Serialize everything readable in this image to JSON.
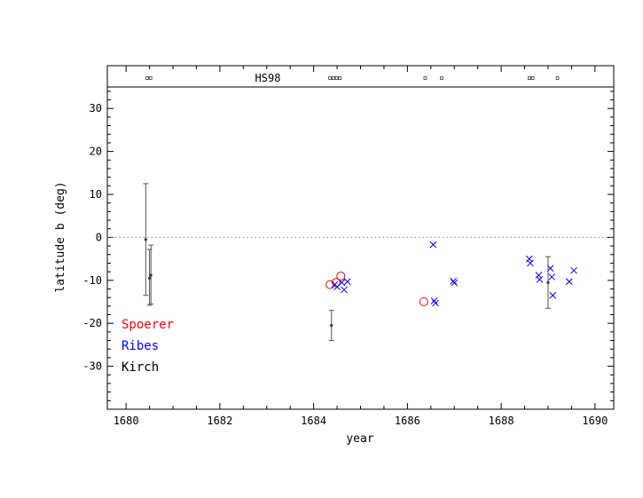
{
  "chart_data": {
    "type": "scatter",
    "xlabel": "year",
    "ylabel": "latitude b (deg)",
    "xlim": [
      1679.6,
      1690.4
    ],
    "ylim": [
      -40,
      35
    ],
    "x_ticks": [
      "1680",
      "1682",
      "1684",
      "1686",
      "1688",
      "1690"
    ],
    "y_ticks": [
      "30",
      "20",
      "10",
      "0",
      "-10",
      "-20",
      "-30"
    ],
    "band_label": "HS98",
    "band_markers_x": [
      1680.45,
      1680.52,
      1684.35,
      1684.42,
      1684.49,
      1684.56,
      1686.38,
      1686.73,
      1688.6,
      1688.67,
      1689.2
    ],
    "zero_line": true,
    "legend": [
      {
        "name": "Spoerer",
        "color": "#ff0000"
      },
      {
        "name": "Ribes",
        "color": "#0000ff"
      },
      {
        "name": "Kirch",
        "color": "#000000"
      }
    ],
    "series": [
      {
        "name": "Spoerer",
        "marker": "circle",
        "color": "#ff0000",
        "points": [
          {
            "x": 1684.35,
            "y": -11.0
          },
          {
            "x": 1684.48,
            "y": -10.5
          },
          {
            "x": 1684.58,
            "y": -9.0
          },
          {
            "x": 1686.35,
            "y": -15.0
          }
        ]
      },
      {
        "name": "Ribes",
        "marker": "cross",
        "color": "#0000ff",
        "points": [
          {
            "x": 1684.45,
            "y": -11.0
          },
          {
            "x": 1684.5,
            "y": -11.5
          },
          {
            "x": 1684.6,
            "y": -10.5
          },
          {
            "x": 1684.65,
            "y": -12.2
          },
          {
            "x": 1684.72,
            "y": -10.3
          },
          {
            "x": 1686.55,
            "y": -1.7
          },
          {
            "x": 1686.57,
            "y": -14.8
          },
          {
            "x": 1686.6,
            "y": -15.3
          },
          {
            "x": 1686.98,
            "y": -10.2
          },
          {
            "x": 1687.0,
            "y": -10.6
          },
          {
            "x": 1688.6,
            "y": -5.0
          },
          {
            "x": 1688.62,
            "y": -6.0
          },
          {
            "x": 1688.8,
            "y": -8.8
          },
          {
            "x": 1688.82,
            "y": -9.8
          },
          {
            "x": 1689.05,
            "y": -7.2
          },
          {
            "x": 1689.08,
            "y": -9.2
          },
          {
            "x": 1689.1,
            "y": -13.5
          },
          {
            "x": 1689.45,
            "y": -10.3
          },
          {
            "x": 1689.55,
            "y": -7.7
          }
        ]
      },
      {
        "name": "Kirch",
        "marker": "dot-errorbar",
        "color": "#000000",
        "points": [
          {
            "x": 1680.42,
            "y": -0.5,
            "ylo": -13.5,
            "yhi": 12.5
          },
          {
            "x": 1680.5,
            "y": -9.5,
            "ylo": -15.8,
            "yhi": -2.8
          },
          {
            "x": 1680.53,
            "y": -8.8,
            "ylo": -15.5,
            "yhi": -1.8
          },
          {
            "x": 1684.38,
            "y": -20.5,
            "ylo": -24.0,
            "yhi": -17.0
          },
          {
            "x": 1689.0,
            "y": -10.5,
            "ylo": -16.5,
            "yhi": -4.5
          }
        ]
      }
    ]
  }
}
